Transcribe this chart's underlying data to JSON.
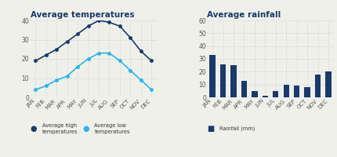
{
  "months": [
    "JAN",
    "FEB",
    "MAR",
    "APR",
    "MAY",
    "JUN",
    "JUL",
    "AUG",
    "SEP",
    "OCT",
    "NOV",
    "DEC"
  ],
  "avg_high": [
    19,
    22,
    25,
    29,
    33,
    37,
    40,
    39,
    37,
    31,
    24,
    19
  ],
  "avg_low": [
    4,
    6,
    9,
    11,
    16,
    20,
    23,
    23,
    19,
    14,
    9,
    4
  ],
  "rainfall": [
    33,
    26,
    25,
    13,
    5,
    1,
    5,
    10,
    9,
    8,
    18,
    20
  ],
  "high_color": "#1a3a6b",
  "low_color": "#29b6e8",
  "rain_color": "#1a3a6b",
  "title_temp": "Average temperatures",
  "title_rain": "Average rainfall",
  "temp_ylim": [
    0,
    40
  ],
  "temp_yticks": [
    0,
    10,
    20,
    30,
    40
  ],
  "rain_ylim": [
    0,
    60
  ],
  "rain_yticks": [
    0,
    10,
    20,
    30,
    40,
    50,
    60
  ],
  "legend_high": "Average high\ntemperatures",
  "legend_low": "Average low\ntemperatures",
  "legend_rain": "Rainfall (mm)",
  "bg_color": "#f0f0eb",
  "title_color": "#1a3a6b",
  "grid_color": "#cccccc"
}
